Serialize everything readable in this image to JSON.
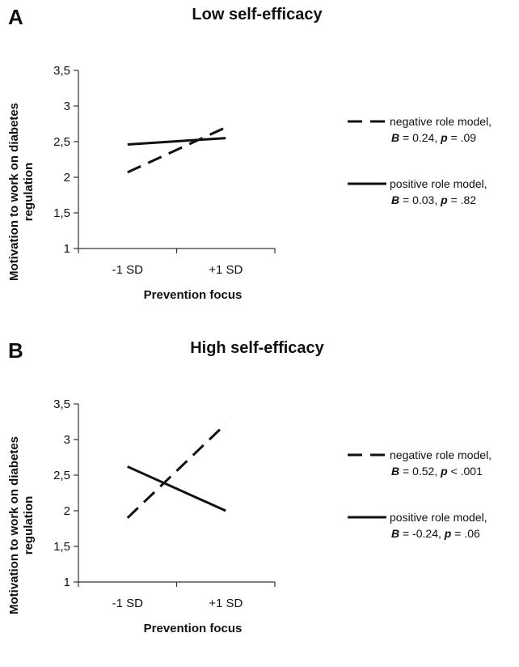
{
  "chart_data": [
    {
      "type": "line",
      "panel_label": "A",
      "title": "Low self-efficacy",
      "xlabel": "Prevention focus",
      "ylabel": "Motivation to work on diabetes regulation",
      "categories": [
        "-1 SD",
        "+1 SD"
      ],
      "ylim": [
        1,
        3.5
      ],
      "yticks": [
        "1",
        "1,5",
        "2",
        "2,5",
        "3",
        "3,5"
      ],
      "grid": false,
      "legend_position": "right",
      "series": [
        {
          "name": "negative role model,",
          "stat": {
            "B": "0.24",
            "p": ".09",
            "p_op": "="
          },
          "style": "dashed",
          "values": [
            2.07,
            2.7
          ]
        },
        {
          "name": "positive role model,",
          "stat": {
            "B": "0.03",
            "p": ".82",
            "p_op": "="
          },
          "style": "solid",
          "values": [
            2.46,
            2.55
          ]
        }
      ]
    },
    {
      "type": "line",
      "panel_label": "B",
      "title": "High self-efficacy",
      "xlabel": "Prevention focus",
      "ylabel": "Motivation to work on diabetes regulation",
      "categories": [
        "-1 SD",
        "+1 SD"
      ],
      "ylim": [
        1,
        3.5
      ],
      "yticks": [
        "1",
        "1,5",
        "2",
        "2,5",
        "3",
        "3,5"
      ],
      "grid": false,
      "legend_position": "right",
      "series": [
        {
          "name": "negative role model,",
          "stat": {
            "B": "0.52",
            "p": ".001",
            "p_op": "<"
          },
          "style": "dashed",
          "values": [
            1.9,
            3.22
          ]
        },
        {
          "name": "positive role model,",
          "stat": {
            "B": "-0.24",
            "p": ".06",
            "p_op": "="
          },
          "style": "solid",
          "values": [
            2.62,
            2.0
          ]
        }
      ]
    }
  ],
  "colors": {
    "line": "#111111",
    "axis": "#333333"
  }
}
